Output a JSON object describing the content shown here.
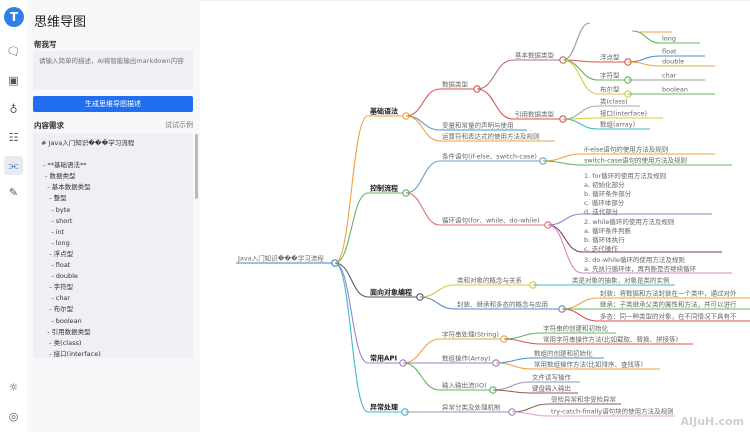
{
  "app": {
    "title": "思维导图",
    "brand_color": "#1f6ff0",
    "watermark": "AIJuH.com"
  },
  "rail": {
    "icons": [
      "logo-icon",
      "chat-icon",
      "image-icon",
      "planet-icon",
      "grid-icon",
      "mindmap-icon",
      "pen-icon",
      "sun-icon",
      "settings-icon"
    ],
    "active": "mindmap-icon"
  },
  "panel": {
    "help_label": "帮我写",
    "help_placeholder": "请输入简单的描述，AI将智能输出markdown内容",
    "generate_button": "生成思维导图描述",
    "content_label": "内容需求",
    "try_example": "试试示例",
    "content_lines": [
      "# Java入门知识���学习流程",
      "",
      " - **基础语法**",
      "  - 数据类型",
      "   - 基本数据类型",
      "    - 整型",
      "     - byte",
      "     - short",
      "     - int",
      "     - long",
      "    - 浮点型",
      "     - float",
      "     - double",
      "    - 字符型",
      "     - char",
      "    - 布尔型",
      "     - boolean",
      "   - 引用数据类型",
      "    - 类(class)",
      "    - 接口(interface)"
    ]
  },
  "mindmap": {
    "root": "Java入门知识���学习流程",
    "b": [
      {
        "label": "基础语法",
        "c": [
          {
            "label": "数据类型",
            "c": [
              {
                "label": "基本数据类型",
                "c": [
                  {
                    "label": "浮点型",
                    "c": [
                      {
                        "label": "float"
                      },
                      {
                        "label": "double"
                      }
                    ]
                  },
                  {
                    "label": "字符型",
                    "c": [
                      {
                        "label": "char"
                      }
                    ]
                  },
                  {
                    "label": "布尔型",
                    "c": [
                      {
                        "label": "boolean"
                      }
                    ]
                  }
                ]
              },
              {
                "label": "引用数据类型",
                "c": [
                  {
                    "label": "类(class)"
                  },
                  {
                    "label": "接口(interface)"
                  },
                  {
                    "label": "数组(array)"
                  }
                ]
              }
            ]
          },
          {
            "label": "变量和常量的声明与使用"
          },
          {
            "label": "运算符和表达式的使用方法及规则"
          }
        ]
      },
      {
        "label": "控制流程",
        "c": [
          {
            "label": "条件语句(if-else、switch-case)",
            "c": [
              {
                "label": "if-else语句的使用方法及规则"
              },
              {
                "label": "switch-case语句的使用方法及规则"
              }
            ]
          },
          {
            "label": "循环语句(for、while、do-while)",
            "c": [
              {
                "lines": [
                  "1. for循环的使用方法及规则",
                  "a. 初始化部分",
                  "b. 循环条件部分",
                  "c. 循环体部分",
                  "d. 迭代部分"
                ]
              },
              {
                "lines": [
                  "2. while循环的使用方法及规则",
                  "a. 循环条件判断",
                  "b. 循环体执行",
                  "c. 迭代操作"
                ]
              },
              {
                "lines": [
                  "3. do-while循环的使用方法及规则",
                  "a. 先执行循环体，再判断是否继续循环"
                ]
              }
            ]
          }
        ]
      },
      {
        "label": "面向对象编程",
        "c": [
          {
            "label": "类和对象的概念与关系",
            "c": [
              {
                "label": "类是对象的抽象，对象是类的实例"
              }
            ]
          },
          {
            "label": "封装、继承和多态的概念与应用",
            "c": [
              {
                "label": "封装：将数据和方法封装在一个类中，通过对外"
              },
              {
                "label": "继承：子类继承父类的属性和方法，并可以进行"
              },
              {
                "label": "多态：同一种类型的对象，在不同情况下具有不"
              }
            ]
          }
        ]
      },
      {
        "label": "常用API",
        "c": [
          {
            "label": "字符串处理(String)",
            "c": [
              {
                "label": "字符串的创建和初始化"
              },
              {
                "label": "常用字符串操作方法(比如截取、替换、拼接等)"
              }
            ]
          },
          {
            "label": "数组操作(Array)",
            "c": [
              {
                "label": "数组的创建和初始化"
              },
              {
                "label": "常用数组操作方法(比如排序、查找等)"
              }
            ]
          },
          {
            "label": "输入输出流(IO)",
            "c": [
              {
                "label": "文件读写操作"
              },
              {
                "label": "键盘输入输出"
              }
            ]
          }
        ]
      },
      {
        "label": "异常处理",
        "c": [
          {
            "label": "异常分类及处理机制",
            "c": [
              {
                "label": "受检异常和非受检异常"
              },
              {
                "label": "try-catch-finally语句块的使用方法及规则"
              }
            ]
          }
        ]
      }
    ],
    "partial_top": {
      "label": "long"
    }
  }
}
